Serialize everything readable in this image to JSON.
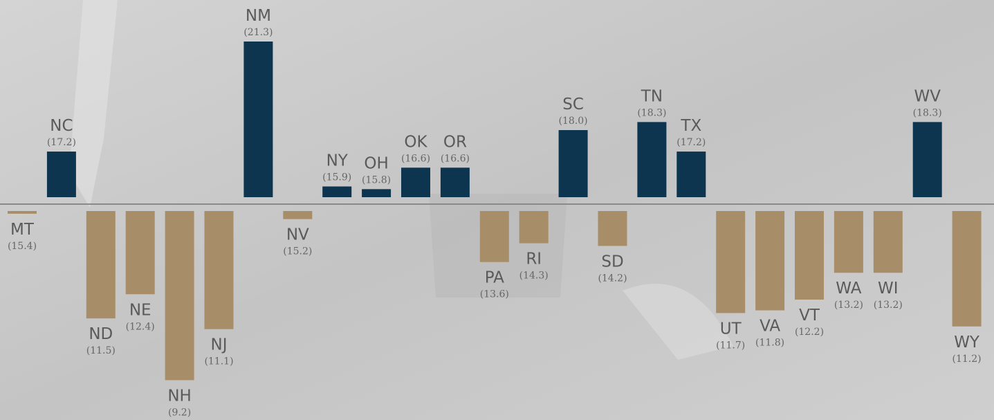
{
  "chart_data": {
    "type": "bar",
    "categories": [
      "MT",
      "NC",
      "ND",
      "NE",
      "NH",
      "NJ",
      "NM",
      "NV",
      "NY",
      "OH",
      "OK",
      "OR",
      "PA",
      "RI",
      "SC",
      "SD",
      "TN",
      "TX",
      "UT",
      "VA",
      "VT",
      "WA",
      "WI",
      "WV",
      "WY"
    ],
    "values": [
      15.4,
      17.2,
      11.5,
      12.4,
      9.2,
      11.1,
      21.3,
      15.2,
      15.9,
      15.8,
      16.6,
      16.6,
      13.6,
      14.3,
      18.0,
      14.2,
      18.3,
      17.2,
      11.7,
      11.8,
      12.2,
      13.2,
      13.2,
      18.3,
      11.2
    ],
    "value_labels": [
      "(15.4)",
      "(17.2)",
      "(11.5)",
      "(12.4)",
      "(9.2)",
      "(11.1)",
      "(21.3)",
      "(15.2)",
      "(15.9)",
      "(15.8)",
      "(16.6)",
      "(16.6)",
      "(13.6)",
      "(14.3)",
      "(18.0)",
      "(14.2)",
      "(18.3)",
      "(17.2)",
      "(11.7)",
      "(11.8)",
      "(12.2)",
      "(13.2)",
      "(13.2)",
      "(18.3)",
      "(11.2)"
    ],
    "baseline": 15.5,
    "ylim": [
      8.9,
      21.3
    ],
    "color_above": "#0e3550",
    "color_below": "#a88e68"
  }
}
